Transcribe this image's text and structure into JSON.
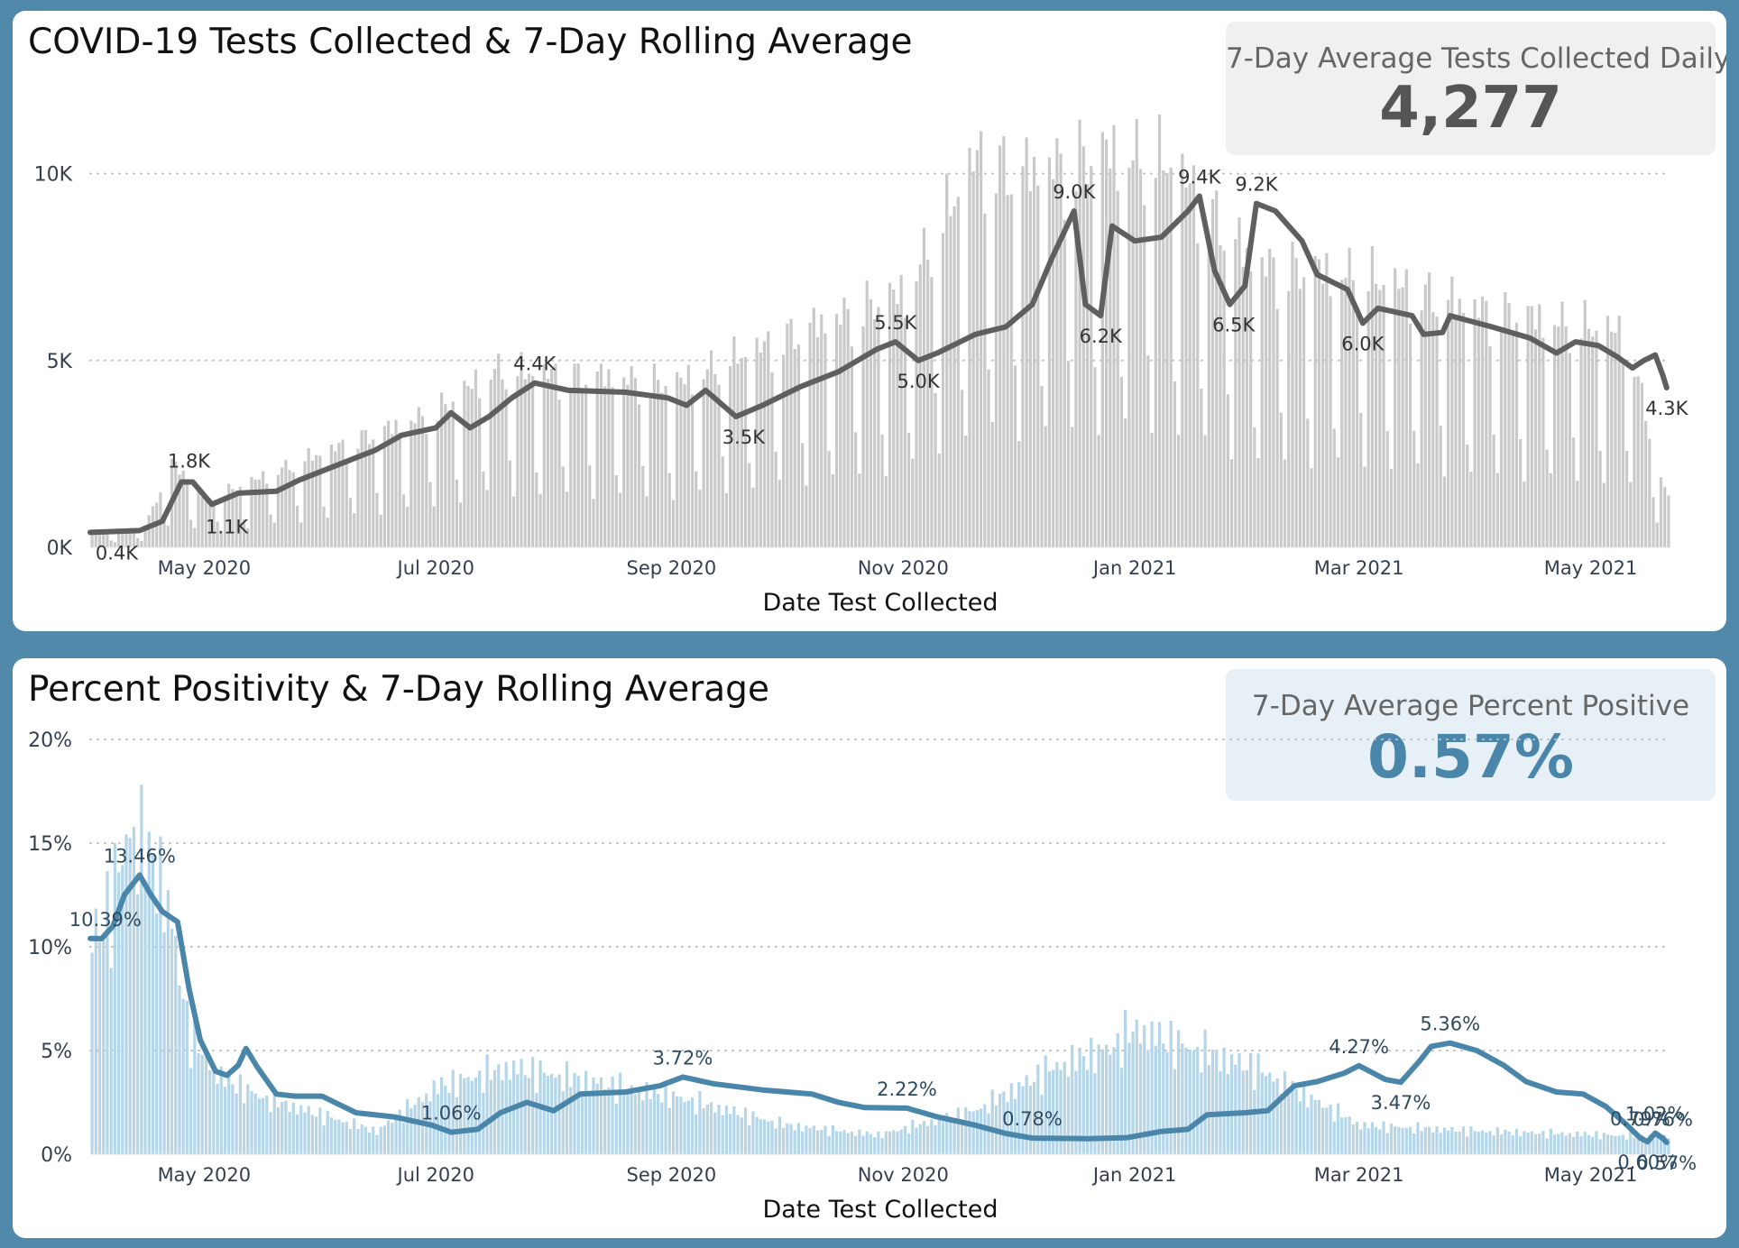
{
  "panels": {
    "tests": {
      "title": "COVID-19 Tests Collected & 7-Day Rolling Average",
      "kpi_label": "7-Day Average Tests Collected Daily",
      "kpi_value": "4,277"
    },
    "positivity": {
      "title": "Percent Positivity & 7-Day Rolling Average",
      "kpi_label": "7-Day Average Percent Positive",
      "kpi_value": "0.57%"
    }
  },
  "colors": {
    "background": "#5189AB",
    "tests_bar": "#C9C9C9",
    "tests_line": "#5F5F5F",
    "pos_bar": "#B5D5E8",
    "pos_line": "#4A86AA",
    "axis_text": "#333F4F"
  },
  "chart_data": [
    {
      "type": "bar",
      "overlay": "line",
      "xlabel": "Date Test Collected",
      "ylabel": "",
      "x_range": [
        "2020-04-01",
        "2021-05-22"
      ],
      "ylim": [
        0,
        11800
      ],
      "yticks": [
        0,
        5000,
        10000
      ],
      "ytick_labels": [
        "0K",
        "5K",
        "10K"
      ],
      "xticks": [
        "2020-05-01",
        "2020-07-01",
        "2020-09-01",
        "2020-11-01",
        "2021-01-01",
        "2021-03-01",
        "2021-05-01"
      ],
      "xtick_labels": [
        "May 2020",
        "Jul 2020",
        "Sep 2020",
        "Nov 2020",
        "Jan 2021",
        "Mar 2021",
        "May 2021"
      ],
      "grid": "horizontal dotted",
      "bar_envelope": [
        {
          "date": "2020-04-01",
          "value": 400
        },
        {
          "date": "2020-04-15",
          "value": 600
        },
        {
          "date": "2020-04-22",
          "value": 2500
        },
        {
          "date": "2020-05-01",
          "value": 1400
        },
        {
          "date": "2020-06-01",
          "value": 2800
        },
        {
          "date": "2020-07-01",
          "value": 4000
        },
        {
          "date": "2020-07-15",
          "value": 5200
        },
        {
          "date": "2020-08-15",
          "value": 5000
        },
        {
          "date": "2020-09-01",
          "value": 4800
        },
        {
          "date": "2020-10-01",
          "value": 6200
        },
        {
          "date": "2020-11-01",
          "value": 7500
        },
        {
          "date": "2020-11-20",
          "value": 11500
        },
        {
          "date": "2020-12-01",
          "value": 11000
        },
        {
          "date": "2020-12-25",
          "value": 11600
        },
        {
          "date": "2021-01-10",
          "value": 11300
        },
        {
          "date": "2021-02-01",
          "value": 8300
        },
        {
          "date": "2021-03-01",
          "value": 8000
        },
        {
          "date": "2021-04-01",
          "value": 7000
        },
        {
          "date": "2021-05-10",
          "value": 6300
        },
        {
          "date": "2021-05-20",
          "value": 1600
        }
      ],
      "rolling_avg": [
        {
          "date": "2020-04-01",
          "value": 400
        },
        {
          "date": "2020-04-14",
          "value": 450
        },
        {
          "date": "2020-04-20",
          "value": 700
        },
        {
          "date": "2020-04-25",
          "value": 1750
        },
        {
          "date": "2020-04-28",
          "value": 1750
        },
        {
          "date": "2020-05-03",
          "value": 1150
        },
        {
          "date": "2020-05-10",
          "value": 1450
        },
        {
          "date": "2020-05-20",
          "value": 1500
        },
        {
          "date": "2020-05-26",
          "value": 1800
        },
        {
          "date": "2020-06-05",
          "value": 2200
        },
        {
          "date": "2020-06-15",
          "value": 2600
        },
        {
          "date": "2020-06-22",
          "value": 3000
        },
        {
          "date": "2020-07-01",
          "value": 3200
        },
        {
          "date": "2020-07-05",
          "value": 3600
        },
        {
          "date": "2020-07-10",
          "value": 3200
        },
        {
          "date": "2020-07-15",
          "value": 3500
        },
        {
          "date": "2020-07-21",
          "value": 4000
        },
        {
          "date": "2020-07-27",
          "value": 4400
        },
        {
          "date": "2020-08-05",
          "value": 4200
        },
        {
          "date": "2020-08-20",
          "value": 4150
        },
        {
          "date": "2020-08-31",
          "value": 4000
        },
        {
          "date": "2020-09-05",
          "value": 3800
        },
        {
          "date": "2020-09-10",
          "value": 4200
        },
        {
          "date": "2020-09-18",
          "value": 3500
        },
        {
          "date": "2020-09-25",
          "value": 3800
        },
        {
          "date": "2020-10-05",
          "value": 4300
        },
        {
          "date": "2020-10-15",
          "value": 4700
        },
        {
          "date": "2020-10-25",
          "value": 5300
        },
        {
          "date": "2020-10-30",
          "value": 5500
        },
        {
          "date": "2020-11-05",
          "value": 5000
        },
        {
          "date": "2020-11-10",
          "value": 5200
        },
        {
          "date": "2020-11-20",
          "value": 5700
        },
        {
          "date": "2020-11-28",
          "value": 5900
        },
        {
          "date": "2020-12-05",
          "value": 6500
        },
        {
          "date": "2020-12-10",
          "value": 7700
        },
        {
          "date": "2020-12-16",
          "value": 9000
        },
        {
          "date": "2020-12-19",
          "value": 6500
        },
        {
          "date": "2020-12-23",
          "value": 6200
        },
        {
          "date": "2020-12-26",
          "value": 8600
        },
        {
          "date": "2021-01-01",
          "value": 8200
        },
        {
          "date": "2021-01-08",
          "value": 8300
        },
        {
          "date": "2021-01-15",
          "value": 9000
        },
        {
          "date": "2021-01-18",
          "value": 9400
        },
        {
          "date": "2021-01-22",
          "value": 7400
        },
        {
          "date": "2021-01-26",
          "value": 6500
        },
        {
          "date": "2021-01-30",
          "value": 7000
        },
        {
          "date": "2021-02-02",
          "value": 9200
        },
        {
          "date": "2021-02-07",
          "value": 9000
        },
        {
          "date": "2021-02-14",
          "value": 8200
        },
        {
          "date": "2021-02-18",
          "value": 7300
        },
        {
          "date": "2021-02-26",
          "value": 6900
        },
        {
          "date": "2021-03-02",
          "value": 6000
        },
        {
          "date": "2021-03-06",
          "value": 6400
        },
        {
          "date": "2021-03-15",
          "value": 6200
        },
        {
          "date": "2021-03-18",
          "value": 5700
        },
        {
          "date": "2021-03-23",
          "value": 5750
        },
        {
          "date": "2021-03-25",
          "value": 6200
        },
        {
          "date": "2021-04-05",
          "value": 5900
        },
        {
          "date": "2021-04-15",
          "value": 5600
        },
        {
          "date": "2021-04-22",
          "value": 5200
        },
        {
          "date": "2021-04-27",
          "value": 5500
        },
        {
          "date": "2021-05-03",
          "value": 5400
        },
        {
          "date": "2021-05-08",
          "value": 5100
        },
        {
          "date": "2021-05-12",
          "value": 4800
        },
        {
          "date": "2021-05-15",
          "value": 5000
        },
        {
          "date": "2021-05-18",
          "value": 5150
        },
        {
          "date": "2021-05-20",
          "value": 4600
        },
        {
          "date": "2021-05-21",
          "value": 4270
        }
      ],
      "annotations": [
        {
          "date": "2020-04-08",
          "value": 400,
          "label": "0.4K",
          "pos": "below"
        },
        {
          "date": "2020-04-27",
          "value": 1800,
          "label": "1.8K",
          "pos": "above"
        },
        {
          "date": "2020-05-07",
          "value": 1100,
          "label": "1.1K",
          "pos": "below"
        },
        {
          "date": "2020-07-27",
          "value": 4400,
          "label": "4.4K",
          "pos": "above"
        },
        {
          "date": "2020-09-20",
          "value": 3500,
          "label": "3.5K",
          "pos": "below"
        },
        {
          "date": "2020-10-30",
          "value": 5500,
          "label": "5.5K",
          "pos": "above"
        },
        {
          "date": "2020-11-05",
          "value": 5000,
          "label": "5.0K",
          "pos": "below"
        },
        {
          "date": "2020-12-16",
          "value": 9000,
          "label": "9.0K",
          "pos": "above"
        },
        {
          "date": "2020-12-23",
          "value": 6200,
          "label": "6.2K",
          "pos": "below"
        },
        {
          "date": "2021-01-18",
          "value": 9400,
          "label": "9.4K",
          "pos": "above"
        },
        {
          "date": "2021-01-27",
          "value": 6500,
          "label": "6.5K",
          "pos": "below"
        },
        {
          "date": "2021-02-02",
          "value": 9200,
          "label": "9.2K",
          "pos": "above"
        },
        {
          "date": "2021-03-02",
          "value": 6000,
          "label": "6.0K",
          "pos": "below"
        },
        {
          "date": "2021-05-21",
          "value": 4270,
          "label": "4.3K",
          "pos": "below"
        }
      ]
    },
    {
      "type": "bar",
      "overlay": "line",
      "xlabel": "Date Test Collected",
      "ylabel": "",
      "x_range": [
        "2020-04-01",
        "2021-05-22"
      ],
      "ylim": [
        0,
        20
      ],
      "yticks": [
        0,
        5,
        10,
        15,
        20
      ],
      "ytick_labels": [
        "0%",
        "5%",
        "10%",
        "15%",
        "20%"
      ],
      "xticks": [
        "2020-05-01",
        "2020-07-01",
        "2020-09-01",
        "2020-11-01",
        "2021-01-01",
        "2021-03-01",
        "2021-05-01"
      ],
      "xtick_labels": [
        "May 2020",
        "Jul 2020",
        "Sep 2020",
        "Nov 2020",
        "Jan 2021",
        "Mar 2021",
        "May 2021"
      ],
      "grid": "horizontal dotted",
      "bar_envelope": [
        {
          "date": "2020-04-01",
          "value": 11
        },
        {
          "date": "2020-04-06",
          "value": 13
        },
        {
          "date": "2020-04-11",
          "value": 17
        },
        {
          "date": "2020-04-20",
          "value": 14
        },
        {
          "date": "2020-04-27",
          "value": 6
        },
        {
          "date": "2020-05-05",
          "value": 4
        },
        {
          "date": "2020-05-15",
          "value": 3
        },
        {
          "date": "2020-06-01",
          "value": 2
        },
        {
          "date": "2020-06-15",
          "value": 1.2
        },
        {
          "date": "2020-07-01",
          "value": 3.5
        },
        {
          "date": "2020-07-20",
          "value": 4.5
        },
        {
          "date": "2020-08-15",
          "value": 3.6
        },
        {
          "date": "2020-09-01",
          "value": 3
        },
        {
          "date": "2020-10-01",
          "value": 1.5
        },
        {
          "date": "2020-10-25",
          "value": 1
        },
        {
          "date": "2020-11-20",
          "value": 2.3
        },
        {
          "date": "2020-12-10",
          "value": 4.5
        },
        {
          "date": "2020-12-25",
          "value": 5.5
        },
        {
          "date": "2021-01-01",
          "value": 6.5
        },
        {
          "date": "2021-01-15",
          "value": 5.5
        },
        {
          "date": "2021-02-01",
          "value": 4.5
        },
        {
          "date": "2021-02-15",
          "value": 3
        },
        {
          "date": "2021-03-01",
          "value": 1.5
        },
        {
          "date": "2021-04-01",
          "value": 1.2
        },
        {
          "date": "2021-05-20",
          "value": 0.9
        }
      ],
      "rolling_avg": [
        {
          "date": "2020-04-01",
          "value": 10.4
        },
        {
          "date": "2020-04-04",
          "value": 10.39
        },
        {
          "date": "2020-04-07",
          "value": 11
        },
        {
          "date": "2020-04-10",
          "value": 12.5
        },
        {
          "date": "2020-04-14",
          "value": 13.46
        },
        {
          "date": "2020-04-17",
          "value": 12.5
        },
        {
          "date": "2020-04-20",
          "value": 11.7
        },
        {
          "date": "2020-04-24",
          "value": 11.2
        },
        {
          "date": "2020-04-27",
          "value": 8
        },
        {
          "date": "2020-04-30",
          "value": 5.5
        },
        {
          "date": "2020-05-04",
          "value": 4
        },
        {
          "date": "2020-05-07",
          "value": 3.8
        },
        {
          "date": "2020-05-10",
          "value": 4.3
        },
        {
          "date": "2020-05-12",
          "value": 5.1
        },
        {
          "date": "2020-05-15",
          "value": 4.2
        },
        {
          "date": "2020-05-20",
          "value": 2.9
        },
        {
          "date": "2020-05-25",
          "value": 2.8
        },
        {
          "date": "2020-06-01",
          "value": 2.8
        },
        {
          "date": "2020-06-10",
          "value": 2
        },
        {
          "date": "2020-06-20",
          "value": 1.8
        },
        {
          "date": "2020-06-30",
          "value": 1.4
        },
        {
          "date": "2020-07-05",
          "value": 1.06
        },
        {
          "date": "2020-07-12",
          "value": 1.2
        },
        {
          "date": "2020-07-18",
          "value": 2
        },
        {
          "date": "2020-07-25",
          "value": 2.5
        },
        {
          "date": "2020-08-01",
          "value": 2.1
        },
        {
          "date": "2020-08-08",
          "value": 2.9
        },
        {
          "date": "2020-08-20",
          "value": 3
        },
        {
          "date": "2020-08-29",
          "value": 3.3
        },
        {
          "date": "2020-09-04",
          "value": 3.72
        },
        {
          "date": "2020-09-12",
          "value": 3.4
        },
        {
          "date": "2020-09-25",
          "value": 3.1
        },
        {
          "date": "2020-10-08",
          "value": 2.9
        },
        {
          "date": "2020-10-15",
          "value": 2.5
        },
        {
          "date": "2020-10-22",
          "value": 2.25
        },
        {
          "date": "2020-11-02",
          "value": 2.22
        },
        {
          "date": "2020-11-10",
          "value": 1.8
        },
        {
          "date": "2020-11-20",
          "value": 1.4
        },
        {
          "date": "2020-11-28",
          "value": 1
        },
        {
          "date": "2020-12-05",
          "value": 0.78
        },
        {
          "date": "2020-12-20",
          "value": 0.75
        },
        {
          "date": "2020-12-30",
          "value": 0.8
        },
        {
          "date": "2021-01-08",
          "value": 1.1
        },
        {
          "date": "2021-01-15",
          "value": 1.2
        },
        {
          "date": "2021-01-20",
          "value": 1.9
        },
        {
          "date": "2021-01-30",
          "value": 2
        },
        {
          "date": "2021-02-05",
          "value": 2.1
        },
        {
          "date": "2021-02-12",
          "value": 3.3
        },
        {
          "date": "2021-02-18",
          "value": 3.5
        },
        {
          "date": "2021-02-25",
          "value": 3.9
        },
        {
          "date": "2021-03-01",
          "value": 4.27
        },
        {
          "date": "2021-03-08",
          "value": 3.6
        },
        {
          "date": "2021-03-12",
          "value": 3.47
        },
        {
          "date": "2021-03-17",
          "value": 4.5
        },
        {
          "date": "2021-03-20",
          "value": 5.2
        },
        {
          "date": "2021-03-25",
          "value": 5.36
        },
        {
          "date": "2021-04-01",
          "value": 5
        },
        {
          "date": "2021-04-08",
          "value": 4.3
        },
        {
          "date": "2021-04-14",
          "value": 3.5
        },
        {
          "date": "2021-04-22",
          "value": 3
        },
        {
          "date": "2021-04-29",
          "value": 2.9
        },
        {
          "date": "2021-05-05",
          "value": 2.3
        },
        {
          "date": "2021-05-10",
          "value": 1.5
        },
        {
          "date": "2021-05-14",
          "value": 0.79
        },
        {
          "date": "2021-05-16",
          "value": 0.6
        },
        {
          "date": "2021-05-18",
          "value": 1.02
        },
        {
          "date": "2021-05-20",
          "value": 0.76
        },
        {
          "date": "2021-05-21",
          "value": 0.57
        }
      ],
      "annotations": [
        {
          "date": "2020-04-05",
          "value": 10.39,
          "label": "10.39%",
          "pos": "above"
        },
        {
          "date": "2020-04-14",
          "value": 13.46,
          "label": "13.46%",
          "pos": "above"
        },
        {
          "date": "2020-07-05",
          "value": 1.06,
          "label": "1.06%",
          "pos": "above"
        },
        {
          "date": "2020-09-04",
          "value": 3.72,
          "label": "3.72%",
          "pos": "above"
        },
        {
          "date": "2020-11-02",
          "value": 2.22,
          "label": "2.22%",
          "pos": "above"
        },
        {
          "date": "2020-12-05",
          "value": 0.78,
          "label": "0.78%",
          "pos": "above"
        },
        {
          "date": "2021-03-01",
          "value": 4.27,
          "label": "4.27%",
          "pos": "above"
        },
        {
          "date": "2021-03-12",
          "value": 3.47,
          "label": "3.47%",
          "pos": "below"
        },
        {
          "date": "2021-03-25",
          "value": 5.36,
          "label": "5.36%",
          "pos": "above"
        },
        {
          "date": "2021-05-14",
          "value": 0.79,
          "label": "0.79%",
          "pos": "above"
        },
        {
          "date": "2021-05-16",
          "value": 0.6,
          "label": "0.60%",
          "pos": "below"
        },
        {
          "date": "2021-05-18",
          "value": 1.02,
          "label": "1.02%",
          "pos": "above"
        },
        {
          "date": "2021-05-20",
          "value": 0.76,
          "label": "0.76%",
          "pos": "above"
        },
        {
          "date": "2021-05-21",
          "value": 0.57,
          "label": "0.57%",
          "pos": "below"
        }
      ]
    }
  ]
}
